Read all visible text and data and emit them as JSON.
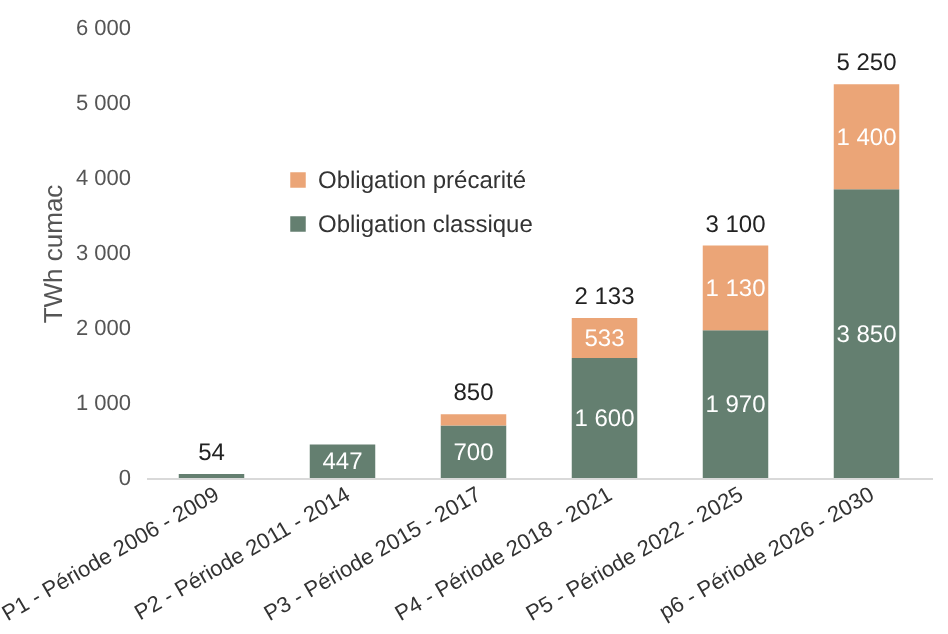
{
  "chart_data": {
    "type": "bar",
    "stacked": true,
    "ylabel": "TWh cumac",
    "categories": [
      "P1 - Période 2006 - 2009",
      "P2 - Période 2011 - 2014",
      "P3 - Période 2015 - 2017",
      "P4 - Période 2018 - 2021",
      "P5 - Période 2022 - 2025",
      "p6 - Période 2026 - 2030"
    ],
    "series": [
      {
        "name": "Obligation classique",
        "color": "#647f70",
        "values": [
          54,
          447,
          700,
          1600,
          1970,
          3850
        ],
        "value_labels": [
          null,
          "447",
          "700",
          "1 600",
          "1 970",
          "3 850"
        ]
      },
      {
        "name": "Obligation précarité",
        "color": "#eba577",
        "values": [
          0,
          0,
          150,
          533,
          1130,
          1400
        ],
        "value_labels": [
          null,
          null,
          null,
          "533",
          "1 130",
          "1 400"
        ]
      }
    ],
    "totals": [
      "54",
      null,
      "850",
      "2 133",
      "3 100",
      "5 250"
    ],
    "ylim": [
      0,
      6000
    ],
    "yticks": [
      {
        "value": 0,
        "label": "0"
      },
      {
        "value": 1000,
        "label": "1 000"
      },
      {
        "value": 2000,
        "label": "2 000"
      },
      {
        "value": 3000,
        "label": "3 000"
      },
      {
        "value": 4000,
        "label": "4 000"
      },
      {
        "value": 5000,
        "label": "5 000"
      },
      {
        "value": 6000,
        "label": "6 000"
      }
    ],
    "grid": false,
    "legend": "top left"
  }
}
